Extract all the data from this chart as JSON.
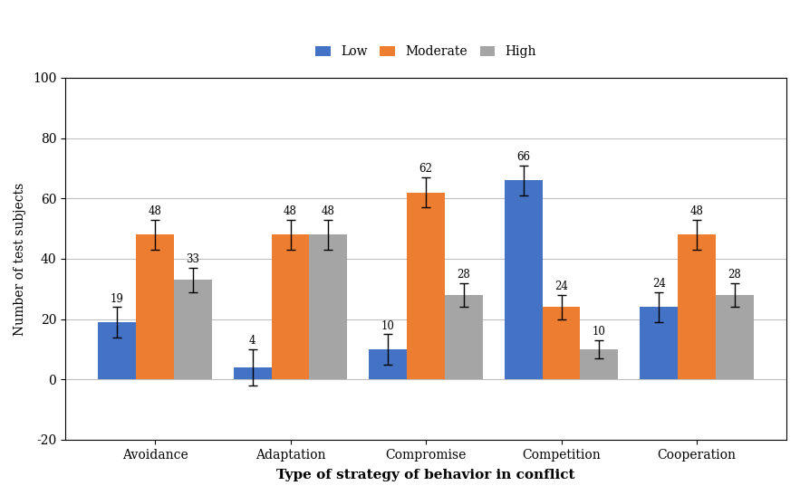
{
  "categories": [
    "Avoidance",
    "Adaptation",
    "Compromise",
    "Competition",
    "Cooperation"
  ],
  "series": {
    "Low": [
      19,
      4,
      10,
      66,
      24
    ],
    "Moderate": [
      48,
      48,
      62,
      24,
      48
    ],
    "High": [
      33,
      48,
      28,
      10,
      28
    ]
  },
  "colors": {
    "Low": "#4472C4",
    "Moderate": "#ED7D31",
    "High": "#A5A5A5"
  },
  "error_bars": {
    "Low": [
      5,
      6,
      5,
      5,
      5
    ],
    "Moderate": [
      5,
      5,
      5,
      4,
      5
    ],
    "High": [
      4,
      5,
      4,
      3,
      4
    ]
  },
  "ylabel": "Number of test subjects",
  "xlabel": "Type of strategy of behavior in conflict",
  "ylim": [
    -20,
    100
  ],
  "yticks": [
    -20,
    0,
    20,
    40,
    60,
    80,
    100
  ],
  "legend_labels": [
    "Low",
    "Moderate",
    "High"
  ],
  "bar_width": 0.28,
  "background_color": "#FFFFFF",
  "grid_color": "#C0C0C0"
}
